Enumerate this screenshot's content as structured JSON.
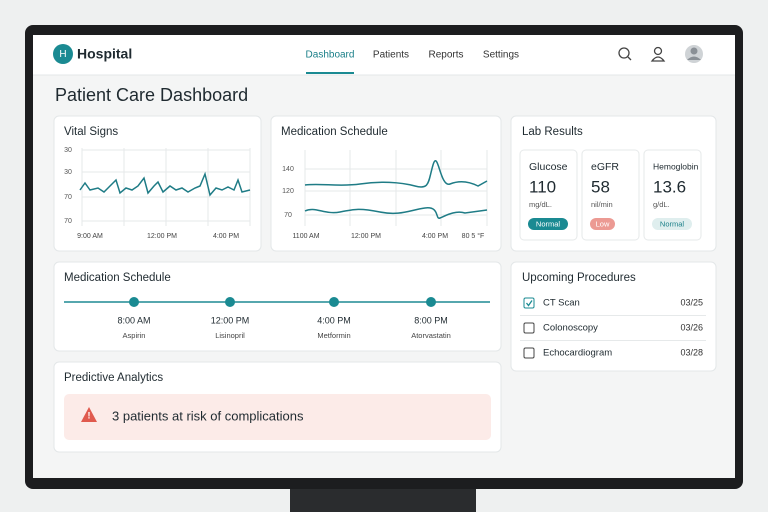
{
  "nav": {
    "brand_initial": "H",
    "brand": "Hospital",
    "items": [
      "Dashboard",
      "Patients",
      "Reports",
      "Settings"
    ],
    "active": 0
  },
  "page_title": "Patient Care Dashboard",
  "vital_signs": {
    "title": "Vital Signs",
    "y_labels": [
      "30",
      "30",
      "70",
      "70"
    ],
    "x_labels": [
      "9:00 AM",
      "12:00 PM",
      "4:00 PM"
    ]
  },
  "medication_chart": {
    "title": "Medication Schedule",
    "y_labels": [
      "140",
      "120",
      "70"
    ],
    "x_labels": [
      "1100 AM",
      "12:00 PM",
      "4:00 PM",
      "80 5 °F"
    ]
  },
  "lab_results": {
    "title": "Lab Results",
    "tests": [
      {
        "name": "Glucose",
        "value": 110,
        "unit": "mg/dL.",
        "status": "Normal"
      },
      {
        "name": "eGFR",
        "value": 58,
        "unit": "nil/min",
        "status": "Low"
      },
      {
        "name": "Hemoglobin",
        "value": 13.6,
        "unit": "g/dL.",
        "status": "Normal"
      }
    ]
  },
  "medication_schedule": {
    "title": "Medication Schedule",
    "doses": [
      {
        "time": "8:00 AM",
        "drug": "Aspirin"
      },
      {
        "time": "12:00 PM",
        "drug": "Lisinopril"
      },
      {
        "time": "4:00 PM",
        "drug": "Metformin"
      },
      {
        "time": "8:00 PM",
        "drug": "Atorvastatin"
      }
    ]
  },
  "procedures": {
    "title": "Upcoming Procedures",
    "items": [
      {
        "name": "CT Scan",
        "date": "03/25",
        "done": true
      },
      {
        "name": "Colonoscopy",
        "date": "03/26",
        "done": false
      },
      {
        "name": "Echocardiogram",
        "date": "03/28",
        "done": false
      }
    ]
  },
  "predictive": {
    "title": "Predictive Analytics",
    "alert": "3 patients at risk of complications"
  }
}
